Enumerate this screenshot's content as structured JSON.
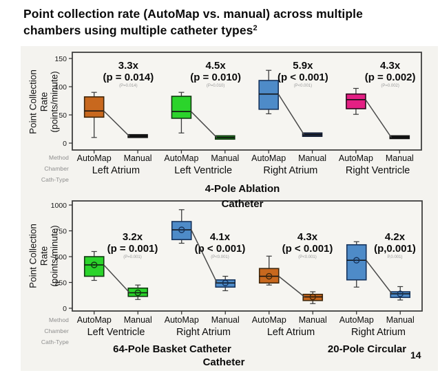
{
  "header": {
    "title": "Point collection rate (AutoMap vs. manual) across multiple chambers using multiple catheter types",
    "superscript": "2"
  },
  "page_number": "14",
  "row_headers": {
    "method": "Method",
    "chamber": "Chamber",
    "cath_type": "Cath-Type"
  },
  "ylabel_lines": [
    "Point Collection",
    "Rate",
    "(points/minute)"
  ],
  "chart_data": [
    {
      "type": "boxplot",
      "panel": "top",
      "catheter_label_lines": [
        "4-Pole Ablation",
        "Catheter"
      ],
      "ylabel": "Point Collection Rate (points/minute)",
      "ylim": [
        0,
        150
      ],
      "yticks": [
        0,
        50,
        100,
        150
      ],
      "methods": [
        "AutoMap",
        "Manual"
      ],
      "chambers": [
        "Left Atrium",
        "Left Ventricle",
        "Right Atrium",
        "Right Ventricle"
      ],
      "groups": [
        {
          "method": "AutoMap",
          "chamber": "Left Atrium",
          "fill": "#c8681e",
          "stroke": "#40270b",
          "whisker_low": 10,
          "q1": 46,
          "median": 57,
          "q3": 82,
          "whisker_high": 90,
          "marker": false
        },
        {
          "method": "Manual",
          "chamber": "Left Atrium",
          "fill": "#141414",
          "stroke": "#141414",
          "q1": 10,
          "median": 12,
          "q3": 15,
          "marker": false
        },
        {
          "method": "AutoMap",
          "chamber": "Left Ventricle",
          "fill": "#2bd42b",
          "stroke": "#113a11",
          "whisker_low": 18,
          "q1": 44,
          "median": 56,
          "q3": 83,
          "whisker_high": 90,
          "marker": false
        },
        {
          "method": "Manual",
          "chamber": "Left Ventricle",
          "fill": "#1d7a1d",
          "stroke": "#113a11",
          "q1": 7,
          "median": 10,
          "q3": 13,
          "marker": false
        },
        {
          "method": "AutoMap",
          "chamber": "Right Atrium",
          "fill": "#4e8bc8",
          "stroke": "#16335c",
          "whisker_low": 52,
          "q1": 60,
          "median": 87,
          "q3": 111,
          "whisker_high": 129,
          "marker": false
        },
        {
          "method": "Manual",
          "chamber": "Right Atrium",
          "fill": "#22304f",
          "stroke": "#141d33",
          "q1": 12,
          "median": 15,
          "q3": 18,
          "marker": false
        },
        {
          "method": "AutoMap",
          "chamber": "Right Ventricle",
          "fill": "#e42084",
          "stroke": "#2c081b",
          "whisker_low": 51,
          "q1": 61,
          "median": 77,
          "q3": 87,
          "whisker_high": 97,
          "marker": false
        },
        {
          "method": "Manual",
          "chamber": "Right Ventricle",
          "fill": "#141414",
          "stroke": "#141414",
          "q1": 8,
          "median": 10,
          "q3": 13,
          "marker": false
        }
      ],
      "pairs": [
        {
          "ratio": "3.3x",
          "p_label": "(p = 0.014)",
          "p_small": "(P=0.014)"
        },
        {
          "ratio": "4.5x",
          "p_label": "(p = 0.010)",
          "p_small": "(P=0.010)"
        },
        {
          "ratio": "5.9x",
          "p_label": "(p < 0.001)",
          "p_small": "(P<0.001)"
        },
        {
          "ratio": "4.3x",
          "p_label": "(p = 0.002)",
          "p_small": "(P=0.002)"
        }
      ]
    },
    {
      "type": "boxplot",
      "panel": "bottom",
      "catheter_label_lines": [
        "64-Pole Basket Catheter",
        "20-Pole Circular",
        "Catheter"
      ],
      "ylabel": "Point Collection Rate (points/minute)",
      "ylim": [
        0,
        1000
      ],
      "yticks": [
        0,
        250,
        500,
        750,
        1000
      ],
      "methods": [
        "AutoMap",
        "Manual"
      ],
      "chambers": [
        "Left Ventricle",
        "Right Atrium",
        "Left Atrium",
        "Right Atrium"
      ],
      "groups": [
        {
          "method": "AutoMap",
          "chamber": "Left Ventricle",
          "fill": "#2bd42b",
          "stroke": "#113a11",
          "whisker_low": 270,
          "q1": 310,
          "median": 420,
          "q3": 500,
          "whisker_high": 550,
          "marker": true
        },
        {
          "method": "Manual",
          "chamber": "Left Ventricle",
          "fill": "#2bd42b",
          "stroke": "#113a11",
          "whisker_low": 85,
          "q1": 115,
          "median": 150,
          "q3": 195,
          "whisker_high": 225,
          "marker": true
        },
        {
          "method": "AutoMap",
          "chamber": "Right Atrium",
          "fill": "#4e8bc8",
          "stroke": "#16335c",
          "whisker_low": 630,
          "q1": 665,
          "median": 760,
          "q3": 840,
          "whisker_high": 955,
          "marker": true
        },
        {
          "method": "Manual",
          "chamber": "Right Atrium",
          "fill": "#4e8bc8",
          "stroke": "#16335c",
          "whisker_low": 170,
          "q1": 205,
          "median": 245,
          "q3": 275,
          "whisker_high": 310,
          "marker": true
        },
        {
          "method": "AutoMap",
          "chamber": "Left Atrium",
          "fill": "#c8681e",
          "stroke": "#40270b",
          "whisker_low": 225,
          "q1": 245,
          "median": 310,
          "q3": 385,
          "whisker_high": 505,
          "marker": true
        },
        {
          "method": "Manual",
          "chamber": "Left Atrium",
          "fill": "#c8681e",
          "stroke": "#40270b",
          "whisker_low": 45,
          "q1": 75,
          "median": 110,
          "q3": 135,
          "whisker_high": 160,
          "marker": true
        },
        {
          "method": "AutoMap",
          "chamber": "Right Atrium",
          "fill": "#4e8bc8",
          "stroke": "#16335c",
          "whisker_low": 205,
          "q1": 275,
          "median": 465,
          "q3": 615,
          "whisker_high": 645,
          "marker": true
        },
        {
          "method": "Manual",
          "chamber": "Right Atrium",
          "fill": "#4e8bc8",
          "stroke": "#16335c",
          "whisker_low": 80,
          "q1": 105,
          "median": 140,
          "q3": 160,
          "whisker_high": 210,
          "marker": true
        }
      ],
      "pairs": [
        {
          "ratio": "3.2x",
          "p_label": "(p = 0.001)",
          "p_small": "(P=0.001)"
        },
        {
          "ratio": "4.1x",
          "p_label": "(p < 0.001)",
          "p_small": "(P<0.001)"
        },
        {
          "ratio": "4.3x",
          "p_label": "(p < 0.001)",
          "p_small": "(P<0.001)"
        },
        {
          "ratio": "4.2x",
          "p_label": "(p,0.001)",
          "p_small": "P,0.001)"
        }
      ]
    }
  ]
}
